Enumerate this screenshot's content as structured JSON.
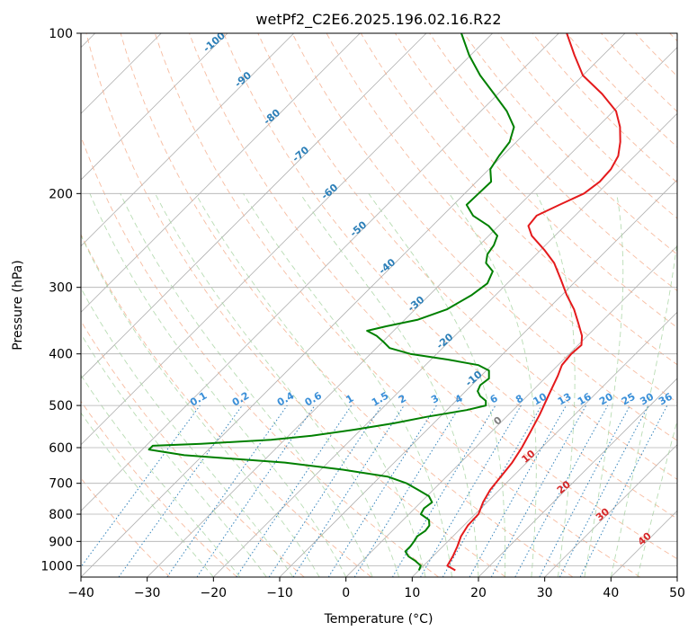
{
  "chart_data": {
    "type": "line",
    "title": "wetPf2_C2E6.2025.196.02.16.R22",
    "xlabel": "Temperature (°C)",
    "ylabel": "Pressure (hPa)",
    "xlim": [
      -40,
      50
    ],
    "ylim": [
      1050,
      100
    ],
    "y_scale": "log",
    "skew": "skew-T",
    "grid": true,
    "x_ticks": [
      -40,
      -30,
      -20,
      -10,
      0,
      10,
      20,
      30,
      40,
      50
    ],
    "y_ticks": [
      100,
      200,
      300,
      400,
      500,
      600,
      700,
      800,
      900,
      1000
    ],
    "series": [
      {
        "color": "#e41a1c",
        "points": [
          [
            1020,
            15.5
          ],
          [
            1000,
            13.6
          ],
          [
            960,
            13.0
          ],
          [
            920,
            12.2
          ],
          [
            880,
            11.2
          ],
          [
            840,
            10.6
          ],
          [
            800,
            10.5
          ],
          [
            760,
            9.4
          ],
          [
            720,
            8.6
          ],
          [
            680,
            8.2
          ],
          [
            640,
            7.8
          ],
          [
            600,
            7.0
          ],
          [
            560,
            5.9
          ],
          [
            520,
            4.7
          ],
          [
            480,
            3.2
          ],
          [
            440,
            1.6
          ],
          [
            420,
            0.6
          ],
          [
            400,
            0.3
          ],
          [
            385,
            0.5
          ],
          [
            370,
            -0.8
          ],
          [
            350,
            -3.3
          ],
          [
            330,
            -6.0
          ],
          [
            310,
            -9.3
          ],
          [
            290,
            -12.5
          ],
          [
            270,
            -16.0
          ],
          [
            255,
            -19.5
          ],
          [
            240,
            -23.5
          ],
          [
            230,
            -25.5
          ],
          [
            220,
            -25.8
          ],
          [
            210,
            -24.0
          ],
          [
            200,
            -22.0
          ],
          [
            190,
            -21.4
          ],
          [
            180,
            -21.6
          ],
          [
            170,
            -22.5
          ],
          [
            160,
            -24.3
          ],
          [
            150,
            -26.6
          ],
          [
            140,
            -29.6
          ],
          [
            130,
            -34.3
          ],
          [
            120,
            -40.0
          ],
          [
            110,
            -44.3
          ],
          [
            100,
            -48.8
          ]
        ]
      },
      {
        "color": "#008000",
        "points": [
          [
            1020,
            10.0
          ],
          [
            1000,
            9.6
          ],
          [
            980,
            8.1
          ],
          [
            960,
            6.3
          ],
          [
            940,
            5.1
          ],
          [
            920,
            5.1
          ],
          [
            900,
            4.9
          ],
          [
            880,
            4.6
          ],
          [
            860,
            5.0
          ],
          [
            840,
            4.8
          ],
          [
            820,
            3.9
          ],
          [
            800,
            1.8
          ],
          [
            780,
            1.4
          ],
          [
            760,
            1.7
          ],
          [
            740,
            0.3
          ],
          [
            720,
            -2.3
          ],
          [
            700,
            -5.0
          ],
          [
            680,
            -8.9
          ],
          [
            660,
            -16.7
          ],
          [
            640,
            -26.5
          ],
          [
            620,
            -42.8
          ],
          [
            605,
            -49.0
          ],
          [
            595,
            -49.0
          ],
          [
            590,
            -42.0
          ],
          [
            580,
            -32.0
          ],
          [
            570,
            -26.5
          ],
          [
            555,
            -21.0
          ],
          [
            540,
            -16.0
          ],
          [
            525,
            -12.0
          ],
          [
            510,
            -7.0
          ],
          [
            500,
            -4.8
          ],
          [
            490,
            -5.5
          ],
          [
            480,
            -7.1
          ],
          [
            470,
            -8.2
          ],
          [
            458,
            -8.7
          ],
          [
            445,
            -8.4
          ],
          [
            430,
            -9.6
          ],
          [
            420,
            -12.0
          ],
          [
            410,
            -17.5
          ],
          [
            400,
            -24.0
          ],
          [
            390,
            -28.0
          ],
          [
            380,
            -29.8
          ],
          [
            370,
            -31.8
          ],
          [
            362,
            -34.0
          ],
          [
            355,
            -31.8
          ],
          [
            345,
            -28.0
          ],
          [
            330,
            -25.2
          ],
          [
            310,
            -23.6
          ],
          [
            295,
            -23.0
          ],
          [
            280,
            -24.0
          ],
          [
            270,
            -26.3
          ],
          [
            260,
            -27.4
          ],
          [
            250,
            -27.8
          ],
          [
            240,
            -28.7
          ],
          [
            230,
            -31.5
          ],
          [
            220,
            -35.4
          ],
          [
            210,
            -38.0
          ],
          [
            200,
            -37.9
          ],
          [
            190,
            -37.8
          ],
          [
            180,
            -39.8
          ],
          [
            170,
            -40.5
          ],
          [
            160,
            -41.0
          ],
          [
            150,
            -42.6
          ],
          [
            140,
            -46.1
          ],
          [
            130,
            -50.6
          ],
          [
            120,
            -55.5
          ],
          [
            110,
            -60.2
          ],
          [
            100,
            -64.7
          ]
        ]
      }
    ],
    "isotherm_labels": [
      -100,
      -90,
      -80,
      -70,
      -60,
      -50,
      -40,
      -30,
      -20,
      -10
    ],
    "mixing_ratio_labels": [
      "0.1",
      "0.2",
      "0.4",
      "0.6",
      "1",
      "1.5",
      "2",
      "3",
      "4",
      "6",
      "8",
      "10",
      "13",
      "16",
      "20",
      "25",
      "30",
      "36"
    ],
    "moist_adiabat_labels": [
      "0",
      "10",
      "20",
      "30",
      "40"
    ]
  }
}
